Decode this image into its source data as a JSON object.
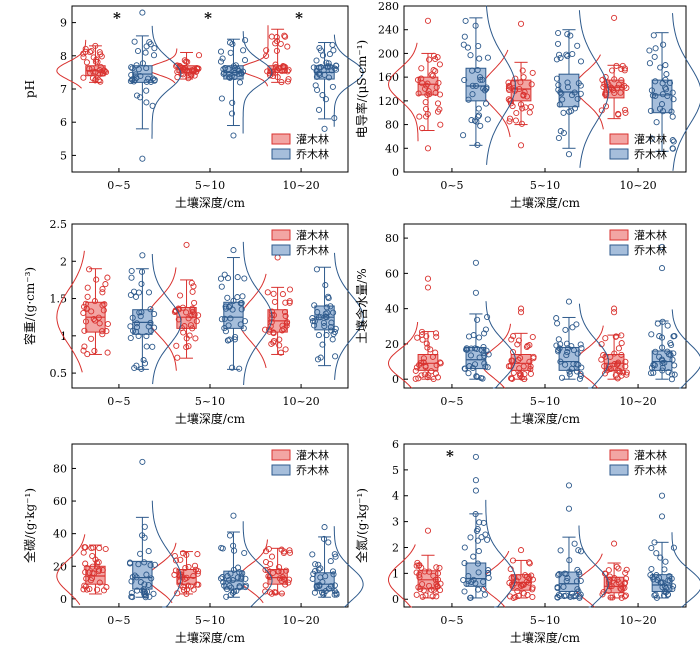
{
  "legend": {
    "shrub": "灌木林",
    "tree": "乔木林"
  },
  "colors": {
    "shrub": "#d9322f",
    "shrub_fill": "#f2a5a3",
    "tree": "#2e5a8c",
    "tree_fill": "#a6bedb"
  },
  "chart_data": [
    {
      "type": "box",
      "ylabel": "pH",
      "xlabel": "土壤深度/cm",
      "categories": [
        "0~5",
        "5~10",
        "10~20"
      ],
      "ylim": [
        4.5,
        9.5
      ],
      "yticks": [
        5,
        6,
        7,
        8,
        9
      ],
      "significance": [
        "*",
        "*",
        "*"
      ],
      "legend_position": "bottom-right",
      "series": [
        {
          "name": "灌木林",
          "min": [
            7.2,
            7.3,
            7.2
          ],
          "q1": [
            7.4,
            7.5,
            7.5
          ],
          "median": [
            7.55,
            7.6,
            7.6
          ],
          "q3": [
            7.7,
            7.7,
            7.7
          ],
          "max": [
            8.3,
            8.1,
            8.8
          ],
          "outliers": [
            [],
            [],
            []
          ]
        },
        {
          "name": "乔木林",
          "min": [
            5.8,
            5.9,
            6.1
          ],
          "q1": [
            7.2,
            7.3,
            7.3
          ],
          "median": [
            7.45,
            7.5,
            7.5
          ],
          "q3": [
            7.7,
            7.7,
            7.7
          ],
          "max": [
            8.6,
            8.5,
            8.4
          ],
          "outliers": [
            [
              4.9,
              9.3
            ],
            [
              5.6
            ],
            [
              5.8
            ]
          ]
        }
      ]
    },
    {
      "type": "box",
      "ylabel": "电导率/(μS·cm⁻¹)",
      "xlabel": "土壤深度/cm",
      "categories": [
        "0~5",
        "5~10",
        "10~20"
      ],
      "ylim": [
        0,
        280
      ],
      "yticks": [
        0,
        40,
        80,
        120,
        160,
        200,
        240,
        280
      ],
      "significance": [
        "",
        "",
        ""
      ],
      "legend_position": "bottom-right",
      "series": [
        {
          "name": "灌木林",
          "min": [
            70,
            80,
            90
          ],
          "q1": [
            130,
            120,
            125
          ],
          "median": [
            148,
            140,
            143
          ],
          "q3": [
            160,
            155,
            155
          ],
          "max": [
            200,
            185,
            180
          ],
          "outliers": [
            [
              40,
              255
            ],
            [
              45,
              250
            ],
            [
              260
            ]
          ]
        },
        {
          "name": "乔木林",
          "min": [
            45,
            40,
            35
          ],
          "q1": [
            120,
            110,
            100
          ],
          "median": [
            145,
            135,
            130
          ],
          "q3": [
            175,
            165,
            155
          ],
          "max": [
            260,
            240,
            235
          ],
          "outliers": [
            [],
            [
              30
            ],
            []
          ]
        }
      ]
    },
    {
      "type": "box",
      "ylabel": "容重/(g·cm⁻³)",
      "xlabel": "土壤深度/cm",
      "categories": [
        "0~5",
        "5~10",
        "10~20"
      ],
      "ylim": [
        0.3,
        2.5
      ],
      "yticks": [
        0.5,
        1.0,
        1.5,
        2.0,
        2.5
      ],
      "significance": [
        "",
        "",
        ""
      ],
      "legend_position": "top-right",
      "series": [
        {
          "name": "灌木林",
          "min": [
            0.75,
            0.7,
            0.75
          ],
          "q1": [
            1.05,
            1.1,
            1.05
          ],
          "median": [
            1.25,
            1.25,
            1.2
          ],
          "q3": [
            1.45,
            1.38,
            1.35
          ],
          "max": [
            1.9,
            1.75,
            1.65
          ],
          "outliers": [
            [],
            [
              2.22
            ],
            [
              2.05
            ]
          ]
        },
        {
          "name": "乔木林",
          "min": [
            0.55,
            0.55,
            0.6
          ],
          "q1": [
            1.02,
            1.1,
            1.08
          ],
          "median": [
            1.18,
            1.25,
            1.25
          ],
          "q3": [
            1.35,
            1.45,
            1.4
          ],
          "max": [
            1.9,
            2.05,
            1.92
          ],
          "outliers": [
            [
              2.08
            ],
            [
              2.15
            ],
            []
          ]
        }
      ]
    },
    {
      "type": "box",
      "ylabel": "土壤含水量/%",
      "xlabel": "土壤深度/cm",
      "categories": [
        "0~5",
        "5~10",
        "10~20"
      ],
      "ylim": [
        -5,
        88
      ],
      "yticks": [
        0,
        20,
        40,
        60,
        80
      ],
      "significance": [
        "",
        "",
        ""
      ],
      "legend_position": "top-right",
      "series": [
        {
          "name": "灌木林",
          "min": [
            0,
            0,
            0
          ],
          "q1": [
            5,
            5,
            5
          ],
          "median": [
            9,
            9,
            9
          ],
          "q3": [
            14,
            14,
            14
          ],
          "max": [
            27,
            26,
            25
          ],
          "outliers": [
            [
              52,
              57
            ],
            [
              38,
              40
            ],
            [
              38,
              40
            ]
          ]
        },
        {
          "name": "乔木林",
          "min": [
            0,
            0,
            0
          ],
          "q1": [
            6,
            5,
            5
          ],
          "median": [
            11,
            10,
            10
          ],
          "q3": [
            18,
            18,
            16
          ],
          "max": [
            37,
            35,
            33
          ],
          "outliers": [
            [
              49,
              66
            ],
            [
              44
            ],
            [
              63,
              75
            ]
          ]
        }
      ]
    },
    {
      "type": "box",
      "ylabel": "全碳/(g·kg⁻¹)",
      "xlabel": "土壤深度/cm",
      "categories": [
        "0~5",
        "5~10",
        "10~20"
      ],
      "ylim": [
        -5,
        95
      ],
      "yticks": [
        0,
        20,
        40,
        60,
        80
      ],
      "significance": [
        "",
        "",
        ""
      ],
      "legend_position": "top-right",
      "series": [
        {
          "name": "灌木林",
          "min": [
            3,
            3,
            3
          ],
          "q1": [
            9,
            9,
            9
          ],
          "median": [
            14,
            13,
            13
          ],
          "q3": [
            20,
            18,
            18
          ],
          "max": [
            33,
            29,
            31
          ],
          "outliers": [
            [],
            [],
            []
          ]
        },
        {
          "name": "乔木林",
          "min": [
            1,
            1,
            1
          ],
          "q1": [
            6,
            6,
            5
          ],
          "median": [
            13,
            11,
            9
          ],
          "q3": [
            23,
            17,
            16
          ],
          "max": [
            50,
            41,
            38
          ],
          "outliers": [
            [
              84
            ],
            [
              51
            ],
            [
              44
            ]
          ]
        }
      ]
    },
    {
      "type": "box",
      "ylabel": "全氮/(g·kg⁻¹)",
      "xlabel": "土壤深度/cm",
      "categories": [
        "0~5",
        "5~10",
        "10~20"
      ],
      "ylim": [
        -0.3,
        6
      ],
      "yticks": [
        0,
        1,
        2,
        3,
        4,
        5,
        6
      ],
      "significance": [
        "*",
        "",
        ""
      ],
      "legend_position": "top-right",
      "series": [
        {
          "name": "灌木林",
          "min": [
            0.05,
            0.05,
            0.05
          ],
          "q1": [
            0.4,
            0.35,
            0.25
          ],
          "median": [
            0.75,
            0.65,
            0.5
          ],
          "q3": [
            1.1,
            0.95,
            0.85
          ],
          "max": [
            1.7,
            1.5,
            1.4
          ],
          "outliers": [
            [
              2.65
            ],
            [
              1.9
            ],
            [
              2.15
            ]
          ]
        },
        {
          "name": "乔木林",
          "min": [
            0.05,
            0.05,
            0.05
          ],
          "q1": [
            0.5,
            0.3,
            0.3
          ],
          "median": [
            0.8,
            0.6,
            0.55
          ],
          "q3": [
            1.4,
            1.05,
            0.95
          ],
          "max": [
            3.3,
            2.4,
            2.2
          ],
          "outliers": [
            [
              4.2,
              4.6,
              5.5
            ],
            [
              3.5,
              4.4
            ],
            [
              3.2,
              4.0
            ]
          ]
        }
      ]
    }
  ]
}
